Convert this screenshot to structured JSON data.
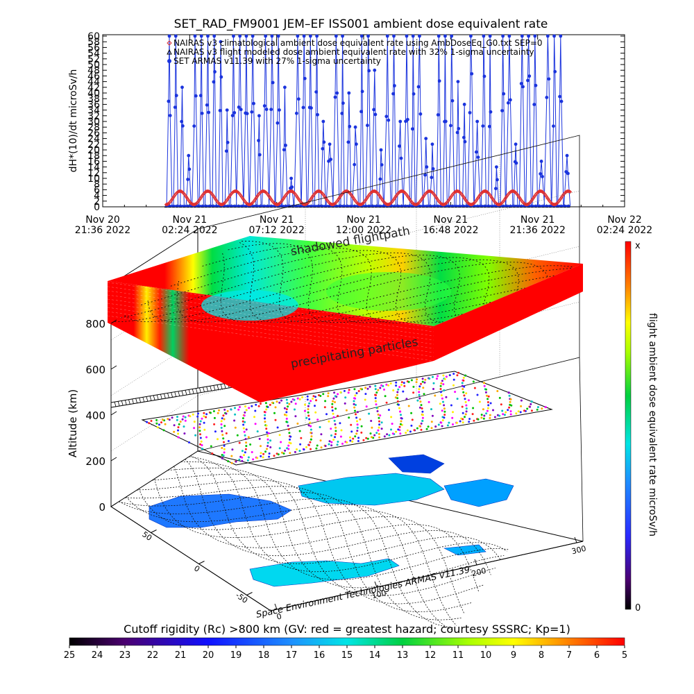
{
  "title": "SET_RAD_FM9001  JEM–EF ISS001 ambient dose equivalent rate",
  "colors": {
    "nairas_climatological": "#e03030",
    "nairas_flight": "#000000",
    "armas": "#1a33dd",
    "axis": "#000000"
  },
  "chart_data": [
    {
      "type": "line",
      "title": "SET_RAD_FM9001  JEM–EF ISS001 ambient dose equivalent rate",
      "ylabel": "dH*(10)/dt microSv/h",
      "xlabel": "",
      "ylim": [
        0,
        60
      ],
      "yticks": [
        0,
        2,
        4,
        6,
        8,
        10,
        12,
        14,
        16,
        18,
        20,
        22,
        24,
        26,
        28,
        30,
        32,
        34,
        36,
        38,
        40,
        42,
        44,
        46,
        48,
        50,
        52,
        54,
        56,
        58,
        60
      ],
      "x_tick_labels": [
        [
          "Nov 20",
          "21:36 2022"
        ],
        [
          "Nov 21",
          "02:24 2022"
        ],
        [
          "Nov 21",
          "07:12 2022"
        ],
        [
          "Nov 21",
          "12:00 2022"
        ],
        [
          "Nov 21",
          "16:48 2022"
        ],
        [
          "Nov 21",
          "21:36 2022"
        ],
        [
          "Nov 22",
          "02:24 2022"
        ]
      ],
      "xlim_hours": [
        0,
        28.8
      ],
      "legend_position": "top",
      "series": [
        {
          "name": "NAIRAS v3 climatological ambient dose equivalent rate using AmbDoseEq_G0.txt SEP=0",
          "style": "red open diamonds, oscillating orbit curve",
          "start_hour": 3.5,
          "end_hour": 25.8,
          "period_hours": 1.53,
          "min": 0.8,
          "max": 5.5
        },
        {
          "name": "NAIRAS v3 flight modeled dose ambient equivalent rate with 32% 1-sigma uncertainty",
          "style": "black triangles",
          "start_hour": 3.5,
          "end_hour": 25.8,
          "typical": 0.3
        },
        {
          "name": "SET ARMAS v11.39 with 27% 1-sigma uncertainty",
          "style": "blue filled circles with connecting line",
          "start_hour": 3.5,
          "end_hour": 25.8,
          "baseline": 0.3,
          "spike_peaks": [
            60,
            60,
            42,
            18,
            60,
            60,
            60,
            60,
            58,
            34,
            60,
            60,
            60,
            60,
            32,
            60,
            60,
            60,
            42,
            10,
            60,
            60,
            60,
            60,
            30,
            22,
            60,
            60,
            40,
            28,
            60,
            60,
            48,
            20,
            60,
            60,
            30,
            60,
            60,
            60,
            24,
            22,
            60,
            60,
            60,
            44,
            36,
            60,
            30,
            60,
            60,
            14,
            60,
            60,
            22,
            60,
            60,
            60,
            16,
            60,
            60,
            60,
            18
          ]
        }
      ]
    },
    {
      "type": "heatmap",
      "title": "",
      "zlabel": "Altitude (km)",
      "z_ticks": [
        0,
        200,
        400,
        600,
        800
      ],
      "longitude_ticks": [
        0,
        100,
        200,
        300
      ],
      "latitude_ticks": [
        -50,
        0,
        50
      ],
      "annotations": [
        "shadowed flightpath",
        "precipitating particles"
      ],
      "colorbar_label": "flight ambient dose equivalent rate microSv/h",
      "colorbar_top": "x",
      "colorbar_bottom": "0",
      "cutoff_colorbar_title": "Cutoff rigidity (Rc) >800 km (GV: red = greatest hazard; courtesy SSSRC; Kp=1)",
      "cutoff_ticks": [
        25,
        24,
        23,
        22,
        21,
        20,
        19,
        18,
        17,
        16,
        15,
        14,
        13,
        12,
        11,
        10,
        9,
        8,
        7,
        6,
        5
      ]
    }
  ],
  "credit": "Space Environment Technologies ARMAS v11.39"
}
